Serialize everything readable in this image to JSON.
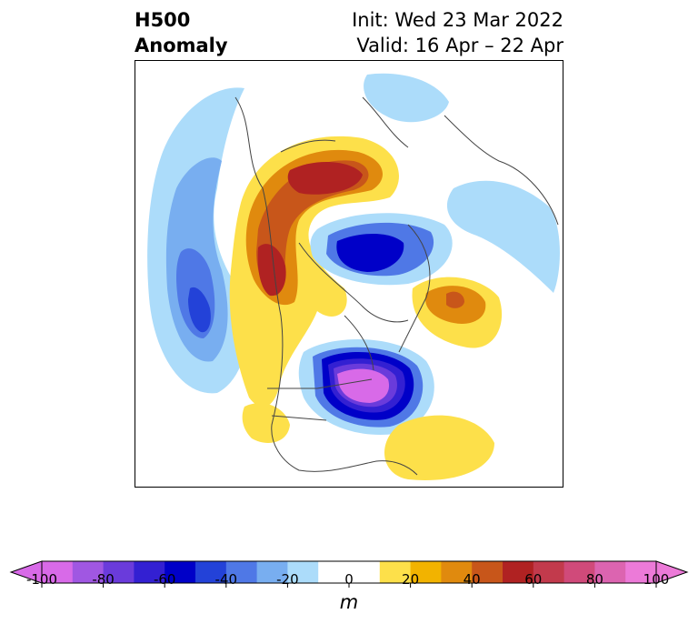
{
  "header": {
    "title_line1": "H500",
    "title_line2": "Anomaly",
    "init_text": "Init: Wed 23 Mar 2022",
    "valid_text": "Valid: 16 Apr – 22 Apr"
  },
  "colorbar": {
    "unit": "m",
    "ticks": [
      "-100",
      "-80",
      "-60",
      "-40",
      "-20",
      "0",
      "20",
      "40",
      "60",
      "80",
      "100"
    ],
    "colors": [
      "#d86ae8",
      "#a057e2",
      "#6a3bdb",
      "#3320d2",
      "#0000c8",
      "#2342d8",
      "#4f78e6",
      "#78aef0",
      "#acdcfa",
      "#ffffff",
      "#ffffff",
      "#fde04a",
      "#f2b300",
      "#e08a0e",
      "#c8561a",
      "#b02222",
      "#c23a4c",
      "#d04a7a",
      "#dc64b0",
      "#ec7ad8"
    ],
    "under_color": "#d86ae8",
    "over_color": "#ec7ad8"
  }
}
